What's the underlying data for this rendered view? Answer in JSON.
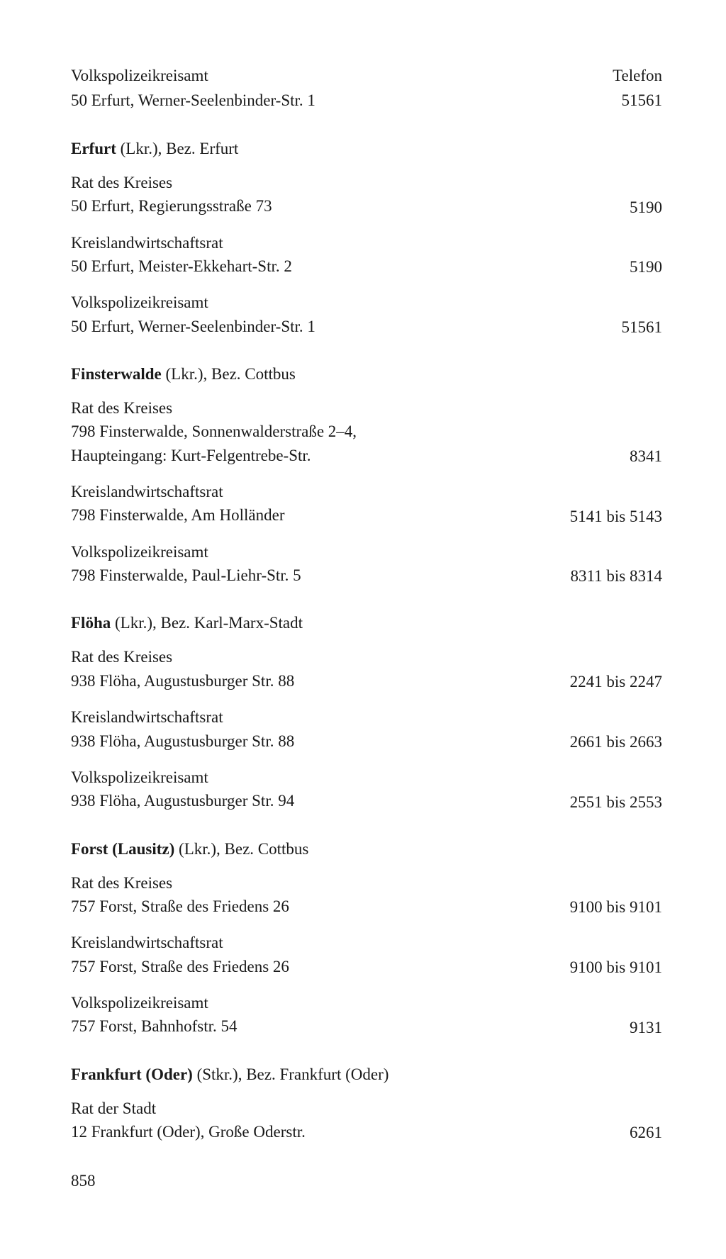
{
  "header": {
    "left_line1": "Volkspolizeikreisamt",
    "left_line2": "50 Erfurt, Werner-Seelenbinder-Str. 1",
    "right_line1": "Telefon",
    "right_line2": "51561"
  },
  "sections": [
    {
      "title_bold": "Erfurt",
      "title_rest": " (Lkr.), Bez. Erfurt",
      "entries": [
        {
          "line1": "Rat des Kreises",
          "line2": "50 Erfurt, Regierungsstraße 73",
          "phone": "5190"
        },
        {
          "line1": "Kreislandwirtschaftsrat",
          "line2": "50 Erfurt, Meister-Ekkehart-Str. 2",
          "phone": "5190"
        },
        {
          "line1": "Volkspolizeikreisamt",
          "line2": "50 Erfurt, Werner-Seelenbinder-Str. 1",
          "phone": "51561"
        }
      ]
    },
    {
      "title_bold": "Finsterwalde",
      "title_rest": " (Lkr.), Bez. Cottbus",
      "entries": [
        {
          "line1": "Rat des Kreises",
          "line2": "798 Finsterwalde, Sonnenwalderstraße 2–4,",
          "line3": "Haupteingang: Kurt-Felgentrebe-Str.",
          "phone": "8341"
        },
        {
          "line1": "Kreislandwirtschaftsrat",
          "line2": "798 Finsterwalde, Am Holländer",
          "phone": "5141 bis 5143"
        },
        {
          "line1": "Volkspolizeikreisamt",
          "line2": "798 Finsterwalde, Paul-Liehr-Str. 5",
          "phone": "8311 bis 8314"
        }
      ]
    },
    {
      "title_bold": "Flöha",
      "title_rest": " (Lkr.), Bez. Karl-Marx-Stadt",
      "entries": [
        {
          "line1": "Rat des Kreises",
          "line2": "938 Flöha, Augustusburger Str. 88",
          "phone": "2241 bis 2247"
        },
        {
          "line1": "Kreislandwirtschaftsrat",
          "line2": "938 Flöha, Augustusburger Str. 88",
          "phone": "2661 bis 2663"
        },
        {
          "line1": "Volkspolizeikreisamt",
          "line2": "938 Flöha, Augustusburger Str. 94",
          "phone": "2551 bis 2553"
        }
      ]
    },
    {
      "title_bold": "Forst (Lausitz)",
      "title_rest": " (Lkr.), Bez. Cottbus",
      "entries": [
        {
          "line1": "Rat des Kreises",
          "line2": "757 Forst, Straße des Friedens 26",
          "phone": "9100 bis 9101"
        },
        {
          "line1": "Kreislandwirtschaftsrat",
          "line2": "757 Forst, Straße des Friedens 26",
          "phone": "9100 bis 9101"
        },
        {
          "line1": "Volkspolizeikreisamt",
          "line2": "757 Forst, Bahnhofstr. 54",
          "phone": "9131"
        }
      ]
    },
    {
      "title_bold": "Frankfurt (Oder)",
      "title_rest": " (Stkr.), Bez. Frankfurt (Oder)",
      "entries": [
        {
          "line1": "Rat der Stadt",
          "line2": "12 Frankfurt (Oder), Große Oderstr.",
          "phone": "6261"
        }
      ]
    }
  ],
  "page_number": "858"
}
